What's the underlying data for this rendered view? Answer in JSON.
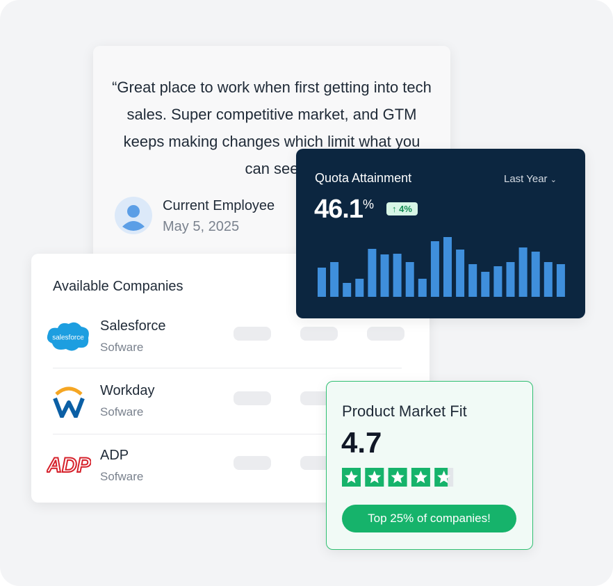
{
  "review": {
    "quote": "“Great place to work when first getting into tech sales. Super competitive market, and GTM keeps making changes which limit what you can see",
    "author": "Current Employee",
    "date": "May 5, 2025"
  },
  "companies": {
    "title": "Available Companies",
    "rows": [
      {
        "name": "Salesforce",
        "industry": "Sofware",
        "logo_text": "salesforce"
      },
      {
        "name": "Workday",
        "industry": "Sofware"
      },
      {
        "name": "ADP",
        "industry": "Sofware",
        "logo_text": "ADP"
      }
    ]
  },
  "quota": {
    "title": "Quota Attainment",
    "period": "Last Year",
    "value": "46.1",
    "unit": "%",
    "change": "4%",
    "bars": [
      42,
      50,
      20,
      26,
      69,
      61,
      62,
      50,
      26,
      80,
      86,
      68,
      47,
      36,
      44,
      50,
      71,
      65,
      50,
      47
    ],
    "bar_color": "#3f8fdc"
  },
  "pmf": {
    "title": "Product Market Fit",
    "rating": 4.7,
    "stars": 5,
    "badge": "Top 25% of companies!",
    "star_color": "#16b36b"
  }
}
